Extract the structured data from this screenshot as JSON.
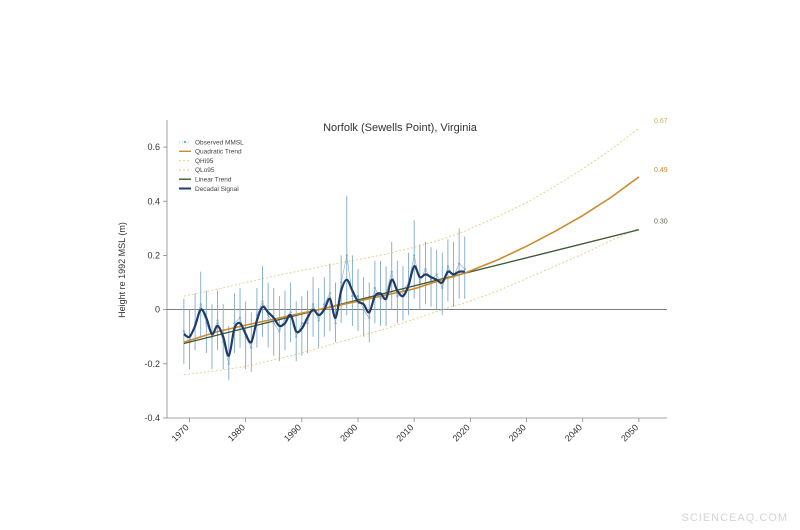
{
  "watermark": "SCIENCEAQ.COM",
  "chart_data": {
    "type": "line",
    "title": "Norfolk (Sewells Point), Virginia",
    "ylabel": "Height re 1992 MSL (m)",
    "xlabel": "",
    "xlim": [
      1966,
      2055
    ],
    "ylim": [
      -0.4,
      0.7
    ],
    "xticks": [
      1970,
      1980,
      1990,
      2000,
      2010,
      2020,
      2030,
      2040,
      2050
    ],
    "yticks": [
      -0.4,
      -0.2,
      0,
      0.2,
      0.4,
      0.6
    ],
    "legend_position": "top-left",
    "legend": [
      "Observed MMSL",
      "Quadratic Trend",
      "QHi95",
      "QLo95",
      "Linear Trend",
      "Decadal Signal"
    ],
    "colors": {
      "observed": "#7fa9c9",
      "quadratic": "#cc8a2e",
      "qhi": "#e3d38a",
      "qlo": "#e3d38a",
      "linear": "#3f5a3a",
      "decadal": "#1f3d66"
    },
    "end_labels": [
      {
        "value": 0.67,
        "text": "0.67",
        "color": "#cfaa55"
      },
      {
        "value": 0.49,
        "text": "0.49",
        "color": "#cc8a2e"
      },
      {
        "value": 0.3,
        "text": "0.30",
        "color": "#5f6b4d"
      }
    ],
    "series": [
      {
        "name": "Quadratic Trend",
        "x": [
          1969,
          1975,
          1980,
          1985,
          1990,
          1995,
          2000,
          2005,
          2010,
          2015,
          2019,
          2025,
          2030,
          2035,
          2040,
          2045,
          2050
        ],
        "y": [
          -0.12,
          -0.081,
          -0.057,
          -0.035,
          -0.013,
          0.009,
          0.031,
          0.054,
          0.077,
          0.11,
          0.135,
          0.185,
          0.234,
          0.288,
          0.347,
          0.414,
          0.49
        ]
      },
      {
        "name": "QHi95",
        "x": [
          1969,
          1975,
          1980,
          1985,
          1990,
          1995,
          2000,
          2005,
          2010,
          2015,
          2019,
          2025,
          2030,
          2035,
          2040,
          2045,
          2050
        ],
        "y": [
          0.05,
          0.075,
          0.1,
          0.123,
          0.145,
          0.165,
          0.185,
          0.205,
          0.23,
          0.26,
          0.29,
          0.345,
          0.395,
          0.455,
          0.52,
          0.59,
          0.67
        ]
      },
      {
        "name": "QLo95",
        "x": [
          1969,
          1975,
          1980,
          1985,
          1990,
          1995,
          2000,
          2005,
          2010,
          2015,
          2019,
          2025,
          2030,
          2035,
          2040,
          2045,
          2050
        ],
        "y": [
          -0.24,
          -0.225,
          -0.21,
          -0.185,
          -0.16,
          -0.13,
          -0.1,
          -0.07,
          -0.035,
          0.0,
          0.025,
          0.07,
          0.115,
          0.16,
          0.205,
          0.255,
          0.3
        ]
      },
      {
        "name": "Linear Trend",
        "x": [
          1969,
          2050
        ],
        "y": [
          -0.125,
          0.295
        ]
      },
      {
        "name": "Decadal Signal",
        "x": [
          1969,
          1970,
          1971,
          1972,
          1973,
          1974,
          1975,
          1976,
          1977,
          1978,
          1979,
          1980,
          1981,
          1982,
          1983,
          1984,
          1985,
          1986,
          1987,
          1988,
          1989,
          1990,
          1991,
          1992,
          1993,
          1994,
          1995,
          1996,
          1997,
          1998,
          1999,
          2000,
          2001,
          2002,
          2003,
          2004,
          2005,
          2006,
          2007,
          2008,
          2009,
          2010,
          2011,
          2012,
          2013,
          2014,
          2015,
          2016,
          2017,
          2018,
          2019
        ],
        "y": [
          -0.09,
          -0.1,
          -0.06,
          0.0,
          -0.03,
          -0.09,
          -0.06,
          -0.1,
          -0.17,
          -0.07,
          -0.05,
          -0.09,
          -0.12,
          -0.04,
          0.01,
          -0.01,
          -0.03,
          -0.06,
          -0.05,
          -0.02,
          -0.08,
          -0.07,
          -0.03,
          0.0,
          -0.02,
          0.0,
          0.04,
          -0.03,
          0.07,
          0.11,
          0.07,
          0.03,
          0.02,
          -0.01,
          0.05,
          0.06,
          0.04,
          0.11,
          0.07,
          0.05,
          0.09,
          0.16,
          0.12,
          0.13,
          0.12,
          0.11,
          0.1,
          0.14,
          0.13,
          0.14,
          0.14
        ]
      },
      {
        "name": "Observed MMSL",
        "x": [
          1969,
          1970,
          1971,
          1972,
          1973,
          1974,
          1975,
          1976,
          1977,
          1978,
          1979,
          1980,
          1981,
          1982,
          1983,
          1984,
          1985,
          1986,
          1987,
          1988,
          1989,
          1990,
          1991,
          1992,
          1993,
          1994,
          1995,
          1996,
          1997,
          1998,
          1999,
          2000,
          2001,
          2002,
          2003,
          2004,
          2005,
          2006,
          2007,
          2008,
          2009,
          2010,
          2011,
          2012,
          2013,
          2014,
          2015,
          2016,
          2017,
          2018,
          2019
        ],
        "y": [
          -0.08,
          -0.12,
          -0.05,
          0.02,
          -0.05,
          -0.1,
          -0.04,
          -0.12,
          -0.2,
          -0.05,
          -0.03,
          -0.1,
          -0.14,
          -0.02,
          0.03,
          -0.02,
          -0.05,
          -0.08,
          -0.03,
          -0.01,
          -0.1,
          -0.05,
          -0.05,
          0.02,
          -0.04,
          0.02,
          0.06,
          -0.05,
          0.1,
          0.2,
          0.05,
          0.05,
          0.0,
          -0.03,
          0.08,
          0.04,
          0.06,
          0.14,
          0.05,
          0.07,
          0.1,
          0.2,
          0.1,
          0.15,
          0.11,
          0.13,
          0.08,
          0.16,
          0.12,
          0.17,
          0.15
        ],
        "range_low": [
          -0.2,
          -0.22,
          -0.15,
          -0.1,
          -0.16,
          -0.22,
          -0.15,
          -0.22,
          -0.26,
          -0.16,
          -0.14,
          -0.22,
          -0.23,
          -0.14,
          -0.1,
          -0.14,
          -0.17,
          -0.19,
          -0.15,
          -0.12,
          -0.19,
          -0.17,
          -0.16,
          -0.1,
          -0.14,
          -0.1,
          -0.08,
          -0.12,
          -0.05,
          -0.02,
          -0.06,
          -0.08,
          -0.1,
          -0.12,
          -0.05,
          -0.06,
          -0.06,
          0.0,
          -0.05,
          -0.04,
          -0.02,
          0.04,
          0.0,
          0.02,
          0.01,
          0.0,
          -0.02,
          0.03,
          0.01,
          0.04,
          0.04
        ],
        "range_high": [
          0.04,
          0.0,
          0.06,
          0.14,
          0.07,
          0.02,
          0.07,
          0.02,
          -0.06,
          0.06,
          0.08,
          0.03,
          -0.01,
          0.08,
          0.16,
          0.1,
          0.08,
          0.05,
          0.07,
          0.1,
          0.03,
          0.05,
          0.07,
          0.12,
          0.08,
          0.12,
          0.17,
          0.1,
          0.2,
          0.42,
          0.2,
          0.15,
          0.12,
          0.1,
          0.18,
          0.18,
          0.16,
          0.25,
          0.18,
          0.16,
          0.21,
          0.33,
          0.24,
          0.25,
          0.23,
          0.22,
          0.21,
          0.26,
          0.25,
          0.3,
          0.27
        ]
      }
    ]
  }
}
